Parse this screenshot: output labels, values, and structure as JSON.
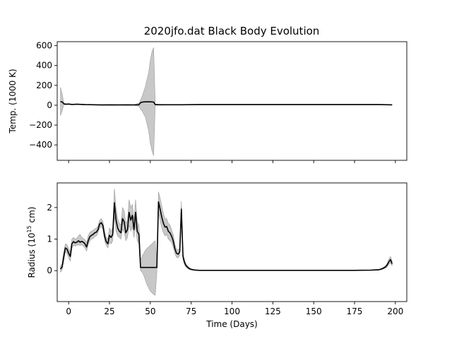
{
  "title": "2020jfo.dat Black Body Evolution",
  "colors": {
    "line": "#000000",
    "band": "#c8c8c8",
    "band_edge": "#9a9a9a",
    "axes": "#000000",
    "background": "#ffffff"
  },
  "chart_data": [
    {
      "type": "line",
      "title": "2020jfo.dat Black Body Evolution",
      "ylabel": "Temp. (1000 K)",
      "xlabel": "",
      "xlim": [
        -7,
        207
      ],
      "ylim": [
        -555,
        640
      ],
      "xticks": [
        0,
        25,
        50,
        75,
        100,
        125,
        150,
        175,
        200
      ],
      "show_xticklabels": false,
      "yticks": [
        -400,
        -200,
        0,
        200,
        400,
        600
      ],
      "ytick_labels": [
        "−400",
        "−200",
        "0",
        "200",
        "400",
        "600"
      ],
      "grid": false,
      "series": [
        {
          "x": [
            -5,
            -4,
            -3,
            -2,
            0,
            2,
            5,
            10,
            15,
            20,
            25,
            30,
            35,
            40,
            43,
            44,
            45,
            47,
            49,
            50,
            51,
            52,
            53,
            55,
            60,
            70,
            80,
            100,
            125,
            150,
            175,
            190,
            195,
            198
          ],
          "y": [
            35,
            34,
            15,
            10,
            12,
            8,
            10,
            6,
            5,
            3,
            4,
            3,
            4,
            3,
            5,
            25,
            32,
            34,
            34,
            34,
            33,
            32,
            6,
            5,
            5,
            5,
            6,
            6,
            6,
            6,
            6,
            6,
            5,
            4
          ],
          "lower": [
            -105,
            -60,
            5,
            5,
            8,
            5,
            6,
            3,
            2,
            0,
            1,
            0,
            1,
            0,
            -10,
            -40,
            -60,
            -120,
            -260,
            -380,
            -460,
            -510,
            0,
            0,
            2,
            2,
            3,
            3,
            3,
            3,
            3,
            3,
            2,
            1
          ],
          "upper": [
            180,
            120,
            25,
            15,
            16,
            11,
            14,
            9,
            8,
            6,
            7,
            6,
            7,
            6,
            20,
            50,
            90,
            190,
            330,
            450,
            540,
            580,
            12,
            10,
            8,
            8,
            9,
            9,
            9,
            9,
            9,
            9,
            8,
            7
          ]
        }
      ]
    },
    {
      "type": "line",
      "title": "",
      "ylabel": "Radius (10^15 cm)",
      "xlabel": "Time (Days)",
      "xlim": [
        -7,
        207
      ],
      "ylim": [
        -0.98,
        2.78
      ],
      "xticks": [
        0,
        25,
        50,
        75,
        100,
        125,
        150,
        175,
        200
      ],
      "xtick_labels": [
        "0",
        "25",
        "50",
        "75",
        "100",
        "125",
        "150",
        "175",
        "200"
      ],
      "yticks": [
        0,
        1,
        2
      ],
      "ytick_labels": [
        "0",
        "1",
        "2"
      ],
      "grid": false,
      "series": [
        {
          "x": [
            -5,
            -4,
            -3,
            -2,
            -1,
            0,
            1,
            2,
            3,
            4,
            5,
            6,
            7,
            8,
            9,
            10,
            11,
            12,
            13,
            14,
            15,
            16,
            17,
            18,
            19,
            20,
            21,
            22,
            23,
            24,
            25,
            26,
            27,
            28,
            29,
            30,
            31,
            32,
            33,
            34,
            35,
            36,
            37,
            38,
            39,
            40,
            41,
            42,
            43,
            44,
            45,
            46,
            47,
            48,
            49,
            50,
            51,
            52,
            53,
            54,
            55,
            56,
            57,
            58,
            59,
            60,
            61,
            62,
            63,
            64,
            65,
            66,
            67,
            68,
            69,
            70,
            71,
            72,
            73,
            74,
            75,
            77,
            80,
            85,
            90,
            100,
            125,
            150,
            175,
            185,
            190,
            192,
            194,
            195,
            196,
            197,
            198
          ],
          "y": [
            0.05,
            0.12,
            0.45,
            0.72,
            0.68,
            0.55,
            0.45,
            0.85,
            0.92,
            0.88,
            0.9,
            0.95,
            0.9,
            0.93,
            0.9,
            0.85,
            0.75,
            0.95,
            1.08,
            1.12,
            1.15,
            1.2,
            1.22,
            1.3,
            1.48,
            1.52,
            1.42,
            1.1,
            0.92,
            0.85,
            1.12,
            1.05,
            1.15,
            2.15,
            1.6,
            1.35,
            1.25,
            1.2,
            1.65,
            1.55,
            1.2,
            1.3,
            1.85,
            1.6,
            1.75,
            1.3,
            1.85,
            1.25,
            1.15,
            0.1,
            0.1,
            0.1,
            0.1,
            0.1,
            0.1,
            0.1,
            0.1,
            0.1,
            0.1,
            0.1,
            2.18,
            1.95,
            1.7,
            1.5,
            1.38,
            1.4,
            1.25,
            1.2,
            1.1,
            0.95,
            0.7,
            0.55,
            0.52,
            0.6,
            1.95,
            0.45,
            0.25,
            0.15,
            0.1,
            0.06,
            0.04,
            0.02,
            0.01,
            0.01,
            0.01,
            0.01,
            0.01,
            0.01,
            0.01,
            0.015,
            0.03,
            0.06,
            0.12,
            0.18,
            0.28,
            0.35,
            0.22
          ],
          "lower": [
            -0.05,
            0.02,
            0.3,
            0.6,
            0.55,
            0.42,
            0.3,
            0.7,
            0.8,
            0.78,
            0.8,
            0.82,
            0.8,
            0.82,
            0.78,
            0.72,
            0.62,
            0.82,
            0.95,
            1.0,
            1.02,
            1.08,
            1.1,
            1.2,
            1.35,
            1.4,
            1.3,
            0.95,
            0.8,
            0.72,
            0.9,
            0.85,
            0.95,
            1.75,
            1.25,
            1.1,
            1.05,
            1.0,
            1.3,
            1.25,
            0.95,
            1.05,
            1.45,
            1.25,
            1.4,
            1.05,
            1.45,
            0.95,
            0.85,
            0.0,
            -0.05,
            -0.15,
            -0.3,
            -0.45,
            -0.55,
            -0.65,
            -0.7,
            -0.75,
            -0.78,
            -0.05,
            1.85,
            1.6,
            1.35,
            1.2,
            1.1,
            1.15,
            1.0,
            0.95,
            0.9,
            0.75,
            0.55,
            0.42,
            0.4,
            0.48,
            1.6,
            0.35,
            0.18,
            0.1,
            0.06,
            0.03,
            0.02,
            0.01,
            0.0,
            0.0,
            0.0,
            0.0,
            0.0,
            0.0,
            0.0,
            0.005,
            0.015,
            0.04,
            0.08,
            0.12,
            0.2,
            0.25,
            0.15
          ],
          "upper": [
            0.15,
            0.22,
            0.6,
            0.85,
            0.82,
            0.7,
            0.6,
            1.0,
            1.05,
            1.0,
            1.02,
            1.1,
            1.15,
            1.05,
            1.02,
            0.98,
            0.9,
            1.1,
            1.22,
            1.25,
            1.28,
            1.32,
            1.35,
            1.42,
            1.6,
            1.65,
            1.55,
            1.25,
            1.05,
            1.0,
            1.35,
            1.25,
            1.35,
            2.6,
            2.0,
            1.65,
            1.5,
            1.45,
            2.0,
            1.9,
            1.5,
            1.6,
            2.25,
            2.0,
            2.1,
            1.6,
            2.25,
            1.55,
            1.45,
            0.35,
            0.45,
            0.55,
            0.65,
            0.7,
            0.75,
            0.8,
            0.85,
            0.9,
            0.95,
            0.3,
            2.5,
            2.3,
            2.05,
            1.8,
            1.65,
            1.65,
            1.5,
            1.45,
            1.3,
            1.15,
            0.85,
            0.68,
            0.65,
            0.72,
            2.2,
            0.55,
            0.32,
            0.2,
            0.14,
            0.09,
            0.06,
            0.03,
            0.02,
            0.02,
            0.02,
            0.02,
            0.02,
            0.02,
            0.02,
            0.025,
            0.045,
            0.08,
            0.16,
            0.24,
            0.36,
            0.45,
            0.3
          ]
        }
      ]
    }
  ]
}
